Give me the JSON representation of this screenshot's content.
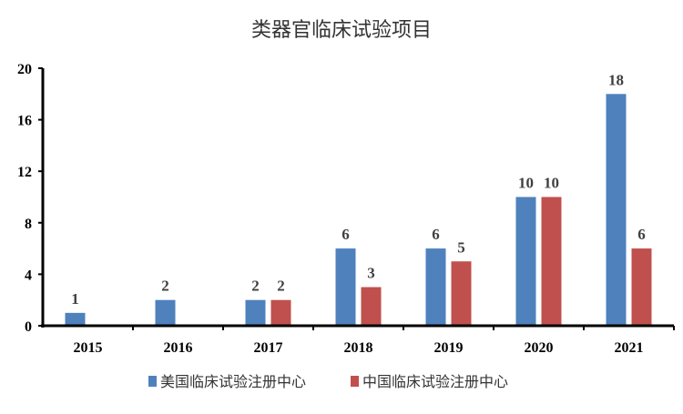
{
  "chart_data": {
    "type": "bar",
    "title": "类器官临床试验项目",
    "xlabel": "",
    "ylabel": "",
    "categories": [
      "2015",
      "2016",
      "2017",
      "2018",
      "2019",
      "2020",
      "2021"
    ],
    "series": [
      {
        "name": "美国临床试验注册中心",
        "color": "#4f81bd",
        "values": [
          1,
          2,
          2,
          6,
          6,
          10,
          18
        ]
      },
      {
        "name": "中国临床试验注册中心",
        "color": "#c0504d",
        "values": [
          null,
          null,
          2,
          3,
          5,
          10,
          6
        ]
      }
    ],
    "ylim": [
      0,
      20
    ],
    "yticks": [
      0,
      4,
      8,
      12,
      16,
      20
    ],
    "grid": false,
    "legend": "bottom",
    "data_labels": true
  }
}
